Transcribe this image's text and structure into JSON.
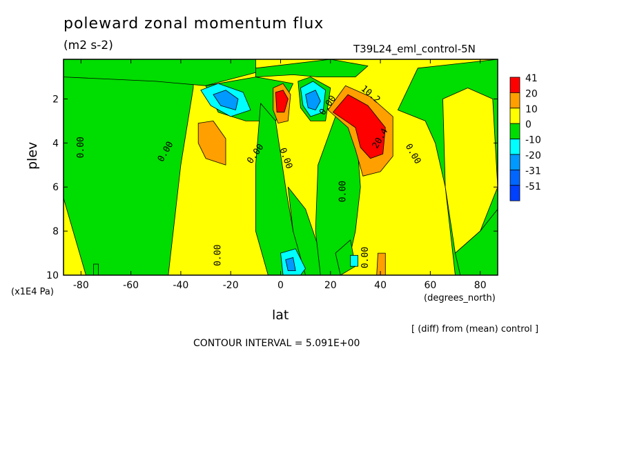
{
  "chart_data": {
    "type": "heatmap",
    "title": "poleward zonal momentum flux",
    "subtitle": "(m2 s-2)",
    "run_name": "T39L24_eml_control-5N",
    "xlabel": "lat",
    "xunits": "(degrees_north)",
    "ylabel": "plev",
    "yunits": "(x1E4 Pa)",
    "diff_note": "[ (diff) from (mean) control ]",
    "contour_interval_text": "CONTOUR INTERVAL = 5.091E+00",
    "xlim": [
      -87,
      87
    ],
    "ylim": [
      10,
      0.2
    ],
    "x_ticks": [
      -80,
      -60,
      -40,
      -20,
      0,
      20,
      40,
      60,
      80
    ],
    "x_tick_labels": [
      "-80",
      "-60",
      "-40",
      "-20",
      "0",
      "20",
      "40",
      "60",
      "80"
    ],
    "y_ticks": [
      2,
      4,
      6,
      8,
      10
    ],
    "y_tick_labels": [
      "2",
      "4",
      "6",
      "8",
      "10"
    ],
    "legend": {
      "placement": "right",
      "bins": [
        {
          "label": "41",
          "color": "#ff0000"
        },
        {
          "label": "20",
          "color": "#ff9f00"
        },
        {
          "label": "10",
          "color": "#ffff00"
        },
        {
          "label": "0",
          "color": "#00dd00"
        },
        {
          "label": "-10",
          "color": "#00ffff"
        },
        {
          "label": "-20",
          "color": "#0099ff"
        },
        {
          "label": "-31",
          "color": "#0066ff"
        },
        {
          "label": "-51",
          "color": "#0040ff"
        }
      ]
    },
    "background_color": "#ffff00",
    "regions": [
      {
        "color": "#00dd00",
        "points": [
          [
            -87,
            0.2
          ],
          [
            -35,
            0.2
          ],
          [
            -35,
            1.5
          ],
          [
            -40,
            5
          ],
          [
            -45,
            10
          ],
          [
            -78,
            10
          ],
          [
            -87,
            6.5
          ]
        ]
      },
      {
        "color": "#00dd00",
        "points": [
          [
            -87,
            0.2
          ],
          [
            -10,
            0.2
          ],
          [
            -10,
            0.8
          ],
          [
            -30,
            1.4
          ],
          [
            -50,
            1.2
          ],
          [
            -87,
            1
          ]
        ]
      },
      {
        "color": "#00dd00",
        "points": [
          [
            -30,
            1.4
          ],
          [
            -10,
            1.0
          ],
          [
            5,
            1.3
          ],
          [
            -2,
            3
          ],
          [
            -14,
            3
          ],
          [
            -25,
            2.6
          ]
        ]
      },
      {
        "color": "#00dd00",
        "points": [
          [
            -8,
            2.2
          ],
          [
            -2,
            3
          ],
          [
            2,
            6
          ],
          [
            5,
            8
          ],
          [
            10,
            9
          ],
          [
            10,
            10
          ],
          [
            -5,
            10
          ],
          [
            -10,
            8
          ],
          [
            -10,
            5
          ]
        ]
      },
      {
        "color": "#00dd00",
        "points": [
          [
            3,
            6
          ],
          [
            10,
            7
          ],
          [
            16,
            9
          ],
          [
            18,
            10
          ],
          [
            10,
            10
          ],
          [
            5,
            8
          ]
        ]
      },
      {
        "color": "#00dd00",
        "points": [
          [
            7,
            1.2
          ],
          [
            12,
            1
          ],
          [
            20,
            1.5
          ],
          [
            18,
            3
          ],
          [
            12,
            3
          ],
          [
            8,
            2.4
          ]
        ]
      },
      {
        "color": "#00dd00",
        "points": [
          [
            15,
            5
          ],
          [
            22,
            2.8
          ],
          [
            30,
            3
          ],
          [
            32,
            6
          ],
          [
            30,
            8
          ],
          [
            28,
            9
          ],
          [
            24,
            10
          ],
          [
            16,
            10
          ],
          [
            14,
            8
          ]
        ]
      },
      {
        "color": "#00dd00",
        "points": [
          [
            22,
            9
          ],
          [
            28,
            8.4
          ],
          [
            30,
            9.6
          ],
          [
            24,
            10
          ]
        ]
      },
      {
        "color": "#00dd00",
        "points": [
          [
            -10,
            0.6
          ],
          [
            20,
            0.2
          ],
          [
            35,
            0.5
          ],
          [
            30,
            1
          ],
          [
            15,
            1
          ],
          [
            5,
            0.9
          ],
          [
            -10,
            1
          ]
        ]
      },
      {
        "color": "#00dd00",
        "points": [
          [
            47,
            2.5
          ],
          [
            55,
            0.6
          ],
          [
            87,
            0.2
          ],
          [
            87,
            10
          ],
          [
            70,
            10
          ],
          [
            68,
            8
          ],
          [
            66,
            6
          ],
          [
            62,
            4
          ],
          [
            58,
            3
          ]
        ]
      },
      {
        "color": "#ffff00",
        "points": [
          [
            65,
            2
          ],
          [
            75,
            1.5
          ],
          [
            85,
            2
          ],
          [
            87,
            6
          ],
          [
            80,
            8
          ],
          [
            70,
            9
          ],
          [
            66,
            6
          ]
        ]
      },
      {
        "color": "#00dd00",
        "points": [
          [
            70,
            9
          ],
          [
            80,
            8
          ],
          [
            87,
            7
          ],
          [
            87,
            10
          ],
          [
            72,
            10
          ]
        ]
      },
      {
        "color": "#ff9f00",
        "points": [
          [
            -33,
            3.1
          ],
          [
            -27,
            3
          ],
          [
            -22,
            3.8
          ],
          [
            -22,
            5
          ],
          [
            -30,
            4.7
          ],
          [
            -33,
            4
          ]
        ]
      },
      {
        "color": "#00ffff",
        "points": [
          [
            -32,
            1.6
          ],
          [
            -25,
            1.3
          ],
          [
            -15,
            1.7
          ],
          [
            -12,
            2.5
          ],
          [
            -20,
            2.8
          ],
          [
            -28,
            2.3
          ]
        ]
      },
      {
        "color": "#0099ff",
        "points": [
          [
            -27,
            1.8
          ],
          [
            -22,
            1.6
          ],
          [
            -17,
            2
          ],
          [
            -18,
            2.5
          ],
          [
            -24,
            2.3
          ]
        ]
      },
      {
        "color": "#ff9f00",
        "points": [
          [
            -3,
            1.5
          ],
          [
            1,
            1.3
          ],
          [
            4,
            1.8
          ],
          [
            3,
            3
          ],
          [
            -1,
            3.1
          ],
          [
            -3,
            2.5
          ]
        ]
      },
      {
        "color": "#ff0000",
        "points": [
          [
            -2,
            1.7
          ],
          [
            1,
            1.6
          ],
          [
            3,
            2
          ],
          [
            1.5,
            2.6
          ],
          [
            -1.5,
            2.6
          ]
        ]
      },
      {
        "color": "#00ffff",
        "points": [
          [
            8,
            1.5
          ],
          [
            13,
            1.2
          ],
          [
            18,
            1.6
          ],
          [
            17,
            2.6
          ],
          [
            12,
            2.8
          ],
          [
            9,
            2.3
          ]
        ]
      },
      {
        "color": "#0099ff",
        "points": [
          [
            10,
            1.8
          ],
          [
            14,
            1.6
          ],
          [
            16,
            2.1
          ],
          [
            14,
            2.5
          ],
          [
            11,
            2.4
          ]
        ]
      },
      {
        "color": "#ff9f00",
        "points": [
          [
            19,
            2.5
          ],
          [
            26,
            1.4
          ],
          [
            36,
            1.9
          ],
          [
            45,
            2.8
          ],
          [
            45,
            4.6
          ],
          [
            40,
            5.3
          ],
          [
            33,
            5.5
          ],
          [
            30,
            4.3
          ],
          [
            27,
            3.3
          ]
        ]
      },
      {
        "color": "#ff0000",
        "points": [
          [
            21,
            2.6
          ],
          [
            27,
            1.8
          ],
          [
            35,
            2.3
          ],
          [
            42,
            3.3
          ],
          [
            41,
            4.5
          ],
          [
            36,
            4.7
          ],
          [
            32,
            4.2
          ],
          [
            30,
            3.3
          ]
        ]
      },
      {
        "color": "#00ffff",
        "points": [
          [
            0,
            9
          ],
          [
            6,
            8.8
          ],
          [
            10,
            9.7
          ],
          [
            8,
            10
          ],
          [
            1,
            10
          ]
        ]
      },
      {
        "color": "#0099ff",
        "points": [
          [
            2,
            9.3
          ],
          [
            5,
            9.2
          ],
          [
            6,
            9.8
          ],
          [
            3,
            9.8
          ]
        ]
      },
      {
        "color": "#00ffff",
        "points": [
          [
            28,
            9.1
          ],
          [
            31,
            9.1
          ],
          [
            31,
            9.6
          ],
          [
            28,
            9.6
          ]
        ]
      },
      {
        "color": "#ff9f00",
        "points": [
          [
            39,
            9
          ],
          [
            42,
            9
          ],
          [
            42,
            10
          ],
          [
            38.5,
            10
          ]
        ]
      },
      {
        "color": "#00dd00",
        "points": [
          [
            -75,
            9.5
          ],
          [
            -73,
            9.5
          ],
          [
            -73,
            10
          ],
          [
            -75,
            10
          ]
        ]
      }
    ],
    "contour_labels": [
      {
        "x": -80,
        "y": 4.2,
        "text": "0.00",
        "rotate": -90
      },
      {
        "x": -46,
        "y": 4.4,
        "text": "0.00",
        "rotate": -60
      },
      {
        "x": -25,
        "y": 9.1,
        "text": "0.00",
        "rotate": -90
      },
      {
        "x": -10,
        "y": 4.5,
        "text": "0.00",
        "rotate": -55
      },
      {
        "x": 2,
        "y": 4.7,
        "text": "0.00",
        "rotate": 70
      },
      {
        "x": 25,
        "y": 6.2,
        "text": "0.00",
        "rotate": -90
      },
      {
        "x": 19,
        "y": 2.3,
        "text": "0.00",
        "rotate": -55
      },
      {
        "x": 34,
        "y": 9.2,
        "text": "0.00",
        "rotate": -90
      },
      {
        "x": 53,
        "y": 4.5,
        "text": "0.00",
        "rotate": 60
      },
      {
        "x": 36,
        "y": 1.8,
        "text": "10.2",
        "rotate": 40
      },
      {
        "x": 40,
        "y": 3.8,
        "text": "20.4",
        "rotate": -60
      }
    ]
  }
}
